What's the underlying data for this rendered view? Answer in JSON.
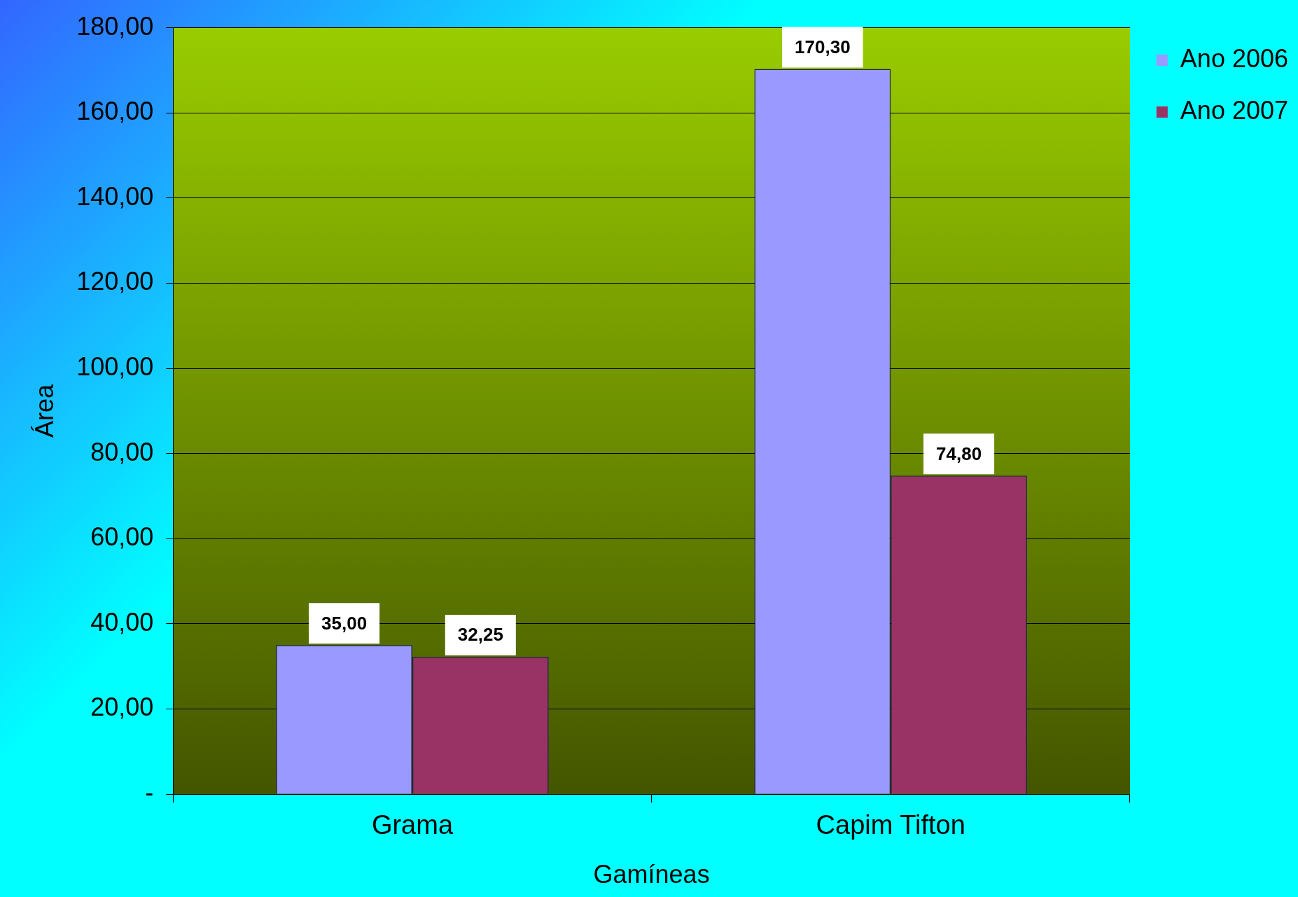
{
  "chart_data": {
    "type": "bar",
    "xlabel": "Gamíneas",
    "ylabel": "Área",
    "categories": [
      "Grama",
      "Capim Tifton"
    ],
    "series": [
      {
        "name": "Ano 2006",
        "color": "#9999ff",
        "values": [
          35,
          170.3
        ],
        "value_labels": [
          "35,00",
          "170,30"
        ]
      },
      {
        "name": "Ano 2007",
        "color": "#993366",
        "values": [
          32.25,
          74.8
        ],
        "value_labels": [
          "32,25",
          "74,80"
        ]
      }
    ],
    "ylim": [
      0,
      180
    ],
    "yticks": [
      {
        "value": 0,
        "label": "-"
      },
      {
        "value": 20,
        "label": "20,00"
      },
      {
        "value": 40,
        "label": "40,00"
      },
      {
        "value": 60,
        "label": "60,00"
      },
      {
        "value": 80,
        "label": "80,00"
      },
      {
        "value": 100,
        "label": "100,00"
      },
      {
        "value": 120,
        "label": "120,00"
      },
      {
        "value": 140,
        "label": "140,00"
      },
      {
        "value": 160,
        "label": "160,00"
      },
      {
        "value": 180,
        "label": "180,00"
      }
    ],
    "grid": "y",
    "legend": "right"
  }
}
